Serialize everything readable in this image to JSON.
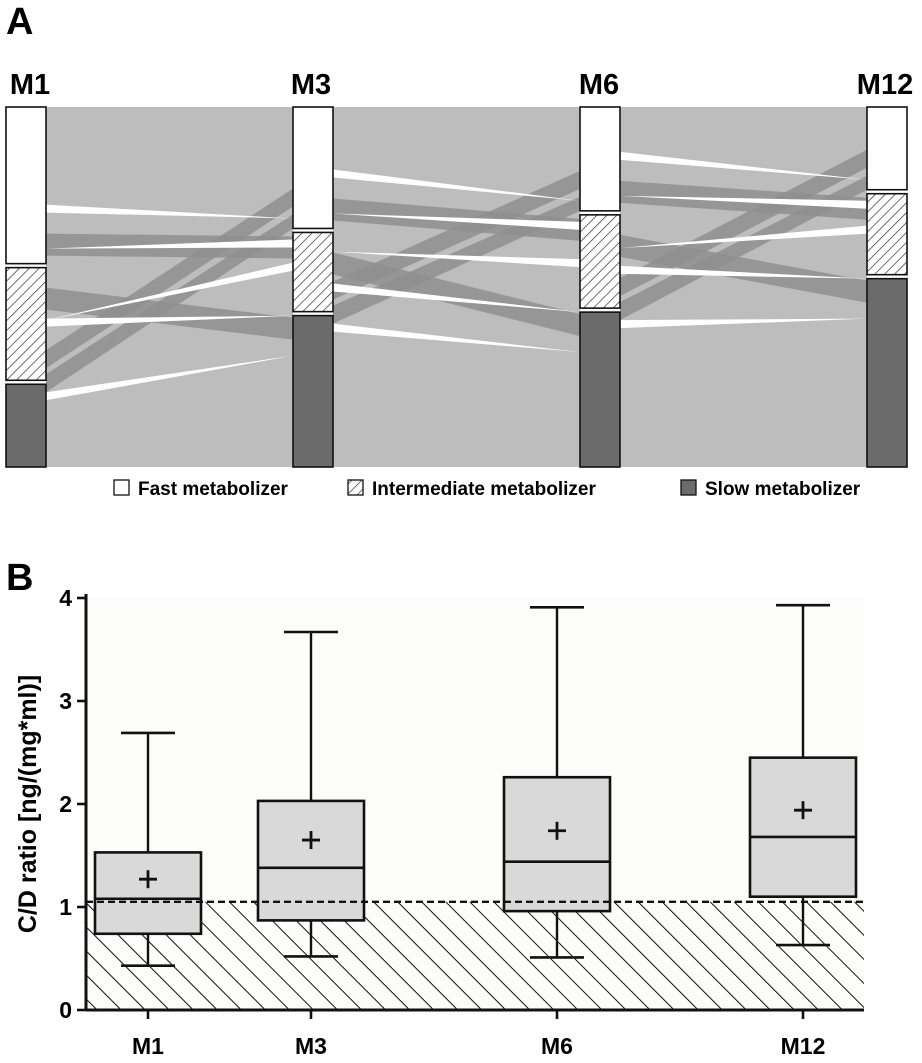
{
  "colors": {
    "flow_gray": "#bdbdbd",
    "flow_dark": "#8f8f8f",
    "slow_fill": "#6b6b6b",
    "box_fill": "#d9d9d9",
    "plot_bg": "#fcfcfa"
  },
  "chart_data": [
    {
      "type": "alluvial",
      "panel": "A",
      "timepoints": [
        "M1",
        "M3",
        "M6",
        "M12"
      ],
      "categories": [
        "Fast metabolizer",
        "Intermediate metabolizer",
        "Slow metabolizer"
      ],
      "proportions": [
        {
          "timepoint": "M1",
          "fast": 0.445,
          "intermediate": 0.32,
          "slow": 0.235
        },
        {
          "timepoint": "M3",
          "fast": 0.345,
          "intermediate": 0.225,
          "slow": 0.43
        },
        {
          "timepoint": "M6",
          "fast": 0.295,
          "intermediate": 0.265,
          "slow": 0.44
        },
        {
          "timepoint": "M12",
          "fast": 0.235,
          "intermediate": 0.23,
          "slow": 0.535
        }
      ],
      "legend": [
        {
          "label": "Fast metabolizer",
          "pattern": "white"
        },
        {
          "label": "Intermediate metabolizer",
          "pattern": "hatched"
        },
        {
          "label": "Slow metabolizer",
          "pattern": "dark"
        }
      ],
      "legend_position": "bottom"
    },
    {
      "type": "boxplot",
      "panel": "B",
      "categories": [
        "M1",
        "M3",
        "M6",
        "M12"
      ],
      "ylabel": "C/D ratio [ng/(mg*ml)]",
      "ylim": [
        0,
        4
      ],
      "yticks": [
        "0",
        "1",
        "2",
        "3",
        "4"
      ],
      "reference_threshold": 1.05,
      "reference_region": "hatched below threshold",
      "boxes": [
        {
          "category": "M1",
          "whisker_low": 0.43,
          "q1": 0.74,
          "median": 1.08,
          "q3": 1.53,
          "whisker_high": 2.69,
          "mean": 1.27
        },
        {
          "category": "M3",
          "whisker_low": 0.52,
          "q1": 0.87,
          "median": 1.38,
          "q3": 2.03,
          "whisker_high": 3.67,
          "mean": 1.65
        },
        {
          "category": "M6",
          "whisker_low": 0.51,
          "q1": 0.96,
          "median": 1.44,
          "q3": 2.26,
          "whisker_high": 3.91,
          "mean": 1.74
        },
        {
          "category": "M12",
          "whisker_low": 0.63,
          "q1": 1.1,
          "median": 1.68,
          "q3": 2.45,
          "whisker_high": 3.93,
          "mean": 1.94
        }
      ],
      "mean_marker": "+",
      "grid": false
    }
  ]
}
